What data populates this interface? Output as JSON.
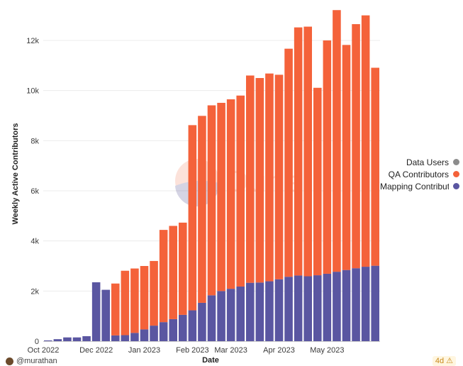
{
  "chart_data": {
    "type": "bar",
    "stacked": true,
    "ylabel": "Weekly Active Contributors",
    "xlabel": "Date",
    "ylim": [
      0,
      13500
    ],
    "yticks": [
      0,
      2000,
      4000,
      6000,
      8000,
      10000,
      12000
    ],
    "ytick_labels": [
      "0",
      "2k",
      "4k",
      "6k",
      "8k",
      "10k",
      "12k"
    ],
    "xtick_labels": [
      "Oct 2022",
      "Dec 2022",
      "Jan 2023",
      "Feb 2023",
      "Mar 2023",
      "Apr 2023",
      "May 2023"
    ],
    "xtick_weeks": [
      0,
      5.5,
      10.5,
      15.5,
      19.5,
      24.5,
      29.5
    ],
    "weeks": 35,
    "series": [
      {
        "name": "Mapping Contributors",
        "color": "#5a56a1",
        "values": [
          30,
          80,
          150,
          150,
          200,
          2350,
          2050,
          230,
          240,
          330,
          470,
          620,
          760,
          880,
          1050,
          1230,
          1530,
          1830,
          2000,
          2090,
          2180,
          2330,
          2340,
          2390,
          2470,
          2570,
          2620,
          2590,
          2630,
          2690,
          2770,
          2840,
          2910,
          2970,
          3010
        ]
      },
      {
        "name": "QA Contributors",
        "color": "#f4623a",
        "values": [
          0,
          0,
          0,
          0,
          0,
          0,
          0,
          2070,
          2570,
          2570,
          2530,
          2580,
          3680,
          3720,
          3680,
          7390,
          7460,
          7580,
          7510,
          7560,
          7620,
          8270,
          8160,
          8290,
          8160,
          9100,
          9900,
          9960,
          7480,
          9310,
          10440,
          8980,
          9740,
          10030,
          7900
        ]
      },
      {
        "name": "Data Users",
        "color": "#8c8c8c",
        "values": [
          0,
          0,
          0,
          0,
          0,
          0,
          0,
          0,
          0,
          0,
          0,
          0,
          0,
          0,
          0,
          0,
          0,
          0,
          0,
          0,
          0,
          0,
          0,
          0,
          0,
          0,
          0,
          0,
          0,
          0,
          0,
          0,
          0,
          0,
          0
        ]
      }
    ],
    "legend": [
      "Data Users",
      "QA Contributors",
      "Mapping Contribut"
    ],
    "legend_position": "right"
  },
  "watermark": {
    "text": "Dune"
  },
  "footer": {
    "user": "@murathan",
    "age": "4d ⚠"
  }
}
